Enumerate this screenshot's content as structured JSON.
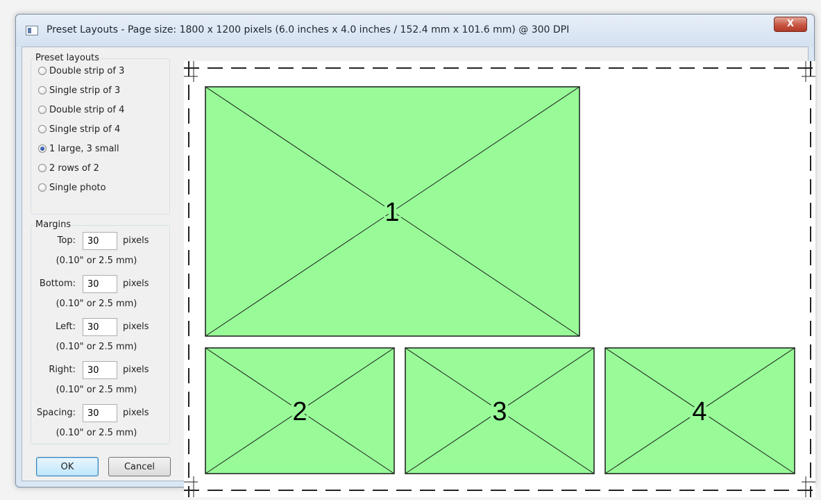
{
  "window": {
    "title": "Preset Layouts - Page size: 1800 x 1200 pixels (6.0 inches x 4.0 inches / 152.4 mm x 101.6 mm) @ 300 DPI",
    "close_label": "X"
  },
  "preset_layouts": {
    "title": "Preset layouts",
    "options": [
      {
        "label": "Double strip of 3",
        "selected": false
      },
      {
        "label": "Single strip of 3",
        "selected": false
      },
      {
        "label": "Double strip of 4",
        "selected": false
      },
      {
        "label": "Single strip of 4",
        "selected": false
      },
      {
        "label": "1 large, 3 small",
        "selected": true
      },
      {
        "label": "2 rows of 2",
        "selected": false
      },
      {
        "label": "Single photo",
        "selected": false
      }
    ]
  },
  "margins": {
    "title": "Margins",
    "unit": "pixels",
    "fields": [
      {
        "label": "Top:",
        "value": "30",
        "conversion": "(0.10\" or 2.5 mm)"
      },
      {
        "label": "Bottom:",
        "value": "30",
        "conversion": "(0.10\" or 2.5 mm)"
      },
      {
        "label": "Left:",
        "value": "30",
        "conversion": "(0.10\" or 2.5 mm)"
      },
      {
        "label": "Right:",
        "value": "30",
        "conversion": "(0.10\" or 2.5 mm)"
      },
      {
        "label": "Spacing:",
        "value": "30",
        "conversion": "(0.10\" or 2.5 mm)"
      }
    ]
  },
  "buttons": {
    "ok": "OK",
    "cancel": "Cancel"
  },
  "preview": {
    "slots": [
      {
        "label": "1"
      },
      {
        "label": "2"
      },
      {
        "label": "3"
      },
      {
        "label": "4"
      }
    ],
    "fill_color": "#98fb98",
    "stroke_color": "#1a1a1a"
  }
}
